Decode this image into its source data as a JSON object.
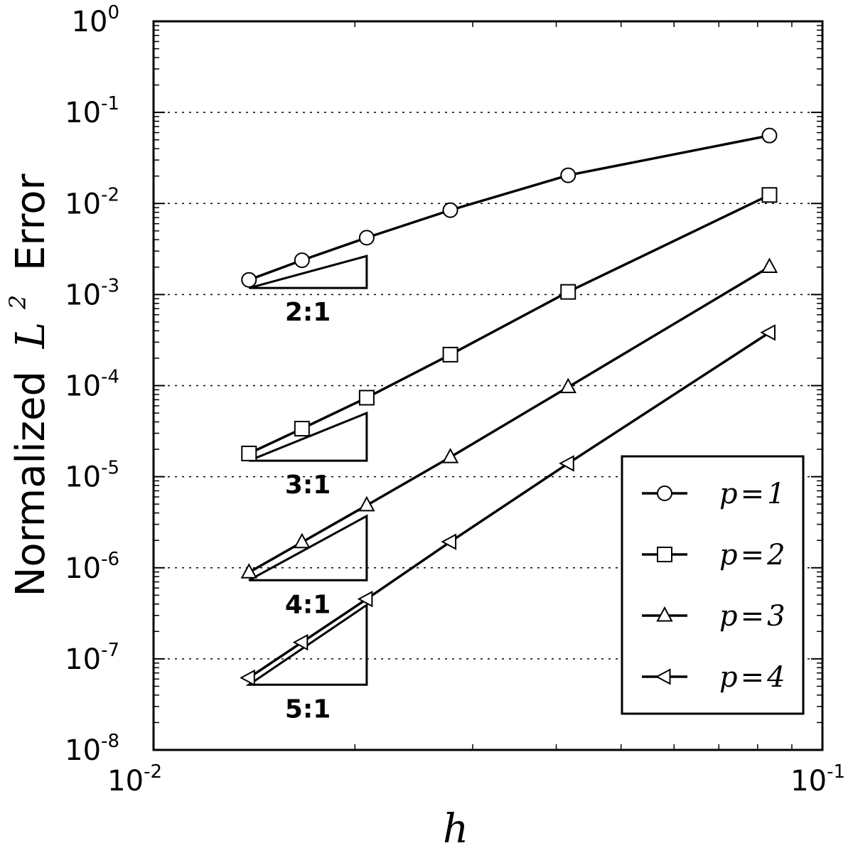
{
  "chart_data": {
    "type": "line",
    "xscale": "log",
    "yscale": "log",
    "xlim": [
      0.01,
      0.1
    ],
    "ylim": [
      1e-08,
      1
    ],
    "xlabel": "h",
    "ylabel_prefix": "Normalized",
    "ylabel_math": "L",
    "ylabel_sup": "2",
    "ylabel_suffix": "Error",
    "x_ticks": [
      {
        "base": "10",
        "exp": "-2"
      },
      {
        "base": "10",
        "exp": "-1"
      }
    ],
    "y_ticks": [
      {
        "base": "10",
        "exp": "0"
      },
      {
        "base": "10",
        "exp": "-1"
      },
      {
        "base": "10",
        "exp": "-2"
      },
      {
        "base": "10",
        "exp": "-3"
      },
      {
        "base": "10",
        "exp": "-4"
      },
      {
        "base": "10",
        "exp": "-5"
      },
      {
        "base": "10",
        "exp": "-6"
      },
      {
        "base": "10",
        "exp": "-7"
      },
      {
        "base": "10",
        "exp": "-8"
      }
    ],
    "grid": "horizontal dotted at major y ticks",
    "legend_position": "bottom-right",
    "series": [
      {
        "name": "p=1",
        "p": "p",
        "eq": "=",
        "n": "1",
        "marker": "circle",
        "x": [
          0.01389,
          0.01667,
          0.02083,
          0.02778,
          0.04167,
          0.08333
        ],
        "y": [
          0.00145,
          0.00238,
          0.00421,
          0.00845,
          0.0204,
          0.0557
        ]
      },
      {
        "name": "p=2",
        "p": "p",
        "eq": "=",
        "n": "2",
        "marker": "square",
        "x": [
          0.01389,
          0.01667,
          0.02083,
          0.02778,
          0.04167,
          0.08333
        ],
        "y": [
          1.8e-05,
          3.37e-05,
          7.37e-05,
          0.000219,
          0.00107,
          0.0124
        ]
      },
      {
        "name": "p=3",
        "p": "p",
        "eq": "=",
        "n": "3",
        "marker": "triangle-up",
        "x": [
          0.01389,
          0.01667,
          0.02083,
          0.02778,
          0.04167,
          0.08333
        ],
        "y": [
          8.9e-07,
          1.91e-06,
          4.85e-06,
          1.64e-05,
          9.63e-05,
          0.00201
        ]
      },
      {
        "name": "p=4",
        "p": "p",
        "eq": "=",
        "n": "4",
        "marker": "triangle-left",
        "x": [
          0.01389,
          0.01667,
          0.02083,
          0.02778,
          0.04167,
          0.08333
        ],
        "y": [
          6.2e-08,
          1.52e-07,
          4.54e-07,
          1.93e-06,
          1.4e-05,
          0.000383
        ]
      }
    ],
    "slope_triangles": [
      {
        "label": "2:1",
        "x": [
          0.01389,
          0.02083
        ],
        "y_base": 0.00118,
        "y_top": 0.00265
      },
      {
        "label": "3:1",
        "x": [
          0.01389,
          0.02083
        ],
        "y_base": 1.5e-05,
        "y_top": 5e-05
      },
      {
        "label": "4:1",
        "x": [
          0.01389,
          0.02083
        ],
        "y_base": 7.3e-07,
        "y_top": 3.7e-06
      },
      {
        "label": "5:1",
        "x": [
          0.01389,
          0.02083
        ],
        "y_base": 5.2e-08,
        "y_top": 3.9e-07
      }
    ]
  }
}
